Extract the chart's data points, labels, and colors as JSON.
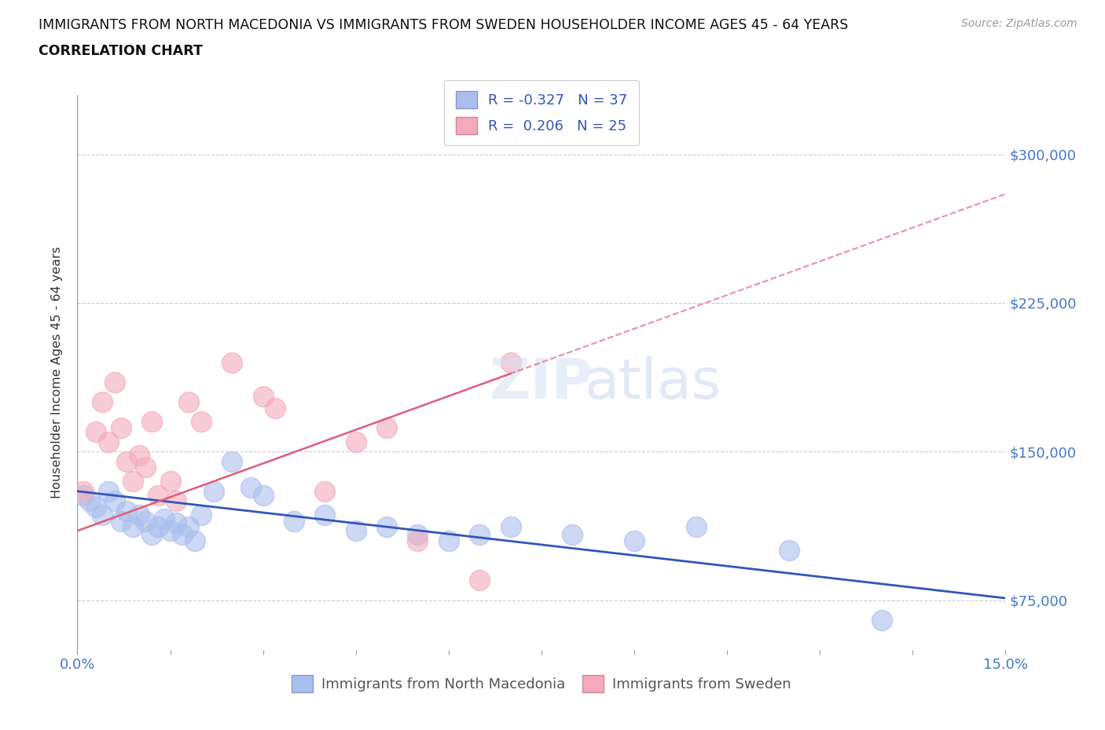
{
  "title_line1": "IMMIGRANTS FROM NORTH MACEDONIA VS IMMIGRANTS FROM SWEDEN HOUSEHOLDER INCOME AGES 45 - 64 YEARS",
  "title_line2": "CORRELATION CHART",
  "source_text": "Source: ZipAtlas.com",
  "ylabel": "Householder Income Ages 45 - 64 years",
  "xlim": [
    0.0,
    0.15
  ],
  "ylim": [
    50000,
    330000
  ],
  "xticks": [
    0.0,
    0.015,
    0.03,
    0.045,
    0.06,
    0.075,
    0.09,
    0.105,
    0.12,
    0.135,
    0.15
  ],
  "xticklabels": [
    "0.0%",
    "",
    "",
    "",
    "",
    "",
    "",
    "",
    "",
    "",
    "15.0%"
  ],
  "ytick_positions": [
    75000,
    150000,
    225000,
    300000
  ],
  "ytick_labels": [
    "$75,000",
    "$150,000",
    "$225,000",
    "$300,000"
  ],
  "blue_color": "#aabfee",
  "pink_color": "#f4aabc",
  "blue_line_color": "#3355bb",
  "pink_line_color": "#e06080",
  "legend_R1": "R = -0.327",
  "legend_N1": "N = 37",
  "legend_R2": "R =  0.206",
  "legend_N2": "N = 25",
  "label1": "Immigrants from North Macedonia",
  "label2": "Immigrants from Sweden",
  "blue_x": [
    0.001,
    0.002,
    0.003,
    0.004,
    0.005,
    0.006,
    0.007,
    0.008,
    0.009,
    0.01,
    0.011,
    0.012,
    0.013,
    0.014,
    0.015,
    0.016,
    0.017,
    0.018,
    0.019,
    0.02,
    0.022,
    0.025,
    0.028,
    0.03,
    0.035,
    0.04,
    0.045,
    0.05,
    0.055,
    0.06,
    0.065,
    0.07,
    0.08,
    0.09,
    0.1,
    0.115,
    0.13
  ],
  "blue_y": [
    128000,
    125000,
    122000,
    118000,
    130000,
    125000,
    115000,
    120000,
    112000,
    118000,
    115000,
    108000,
    112000,
    116000,
    110000,
    114000,
    108000,
    112000,
    105000,
    118000,
    130000,
    145000,
    132000,
    128000,
    115000,
    118000,
    110000,
    112000,
    108000,
    105000,
    108000,
    112000,
    108000,
    105000,
    112000,
    100000,
    65000
  ],
  "pink_x": [
    0.001,
    0.003,
    0.004,
    0.005,
    0.006,
    0.007,
    0.008,
    0.009,
    0.01,
    0.011,
    0.012,
    0.013,
    0.015,
    0.016,
    0.018,
    0.02,
    0.025,
    0.03,
    0.032,
    0.04,
    0.045,
    0.05,
    0.055,
    0.065,
    0.07
  ],
  "pink_y": [
    130000,
    160000,
    175000,
    155000,
    185000,
    162000,
    145000,
    135000,
    148000,
    142000,
    165000,
    128000,
    135000,
    125000,
    175000,
    165000,
    195000,
    178000,
    172000,
    130000,
    155000,
    162000,
    105000,
    85000,
    195000
  ]
}
